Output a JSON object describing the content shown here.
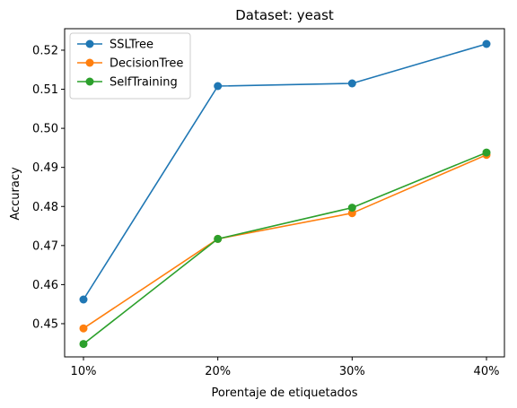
{
  "chart_data": {
    "type": "line",
    "title": "Dataset: yeast",
    "xlabel": "Porentaje de etiquetados",
    "ylabel": "Accuracy",
    "categories": [
      "10%",
      "20%",
      "30%",
      "40%"
    ],
    "ylim": [
      0.4415,
      0.5255
    ],
    "yticks": [
      0.45,
      0.46,
      0.47,
      0.48,
      0.49,
      0.5,
      0.51,
      0.52
    ],
    "ytick_labels": [
      "0.45",
      "0.46",
      "0.47",
      "0.48",
      "0.49",
      "0.50",
      "0.51",
      "0.52"
    ],
    "grid": false,
    "legend_position": "upper-left",
    "series": [
      {
        "name": "SSLTree",
        "color": "#1f77b4",
        "values": [
          0.4562,
          0.5108,
          0.5115,
          0.5216
        ]
      },
      {
        "name": "DecisionTree",
        "color": "#ff7f0e",
        "values": [
          0.4488,
          0.4717,
          0.4783,
          0.4932
        ]
      },
      {
        "name": "SelfTraining",
        "color": "#2ca02c",
        "values": [
          0.4448,
          0.4717,
          0.4797,
          0.4938
        ]
      }
    ]
  }
}
